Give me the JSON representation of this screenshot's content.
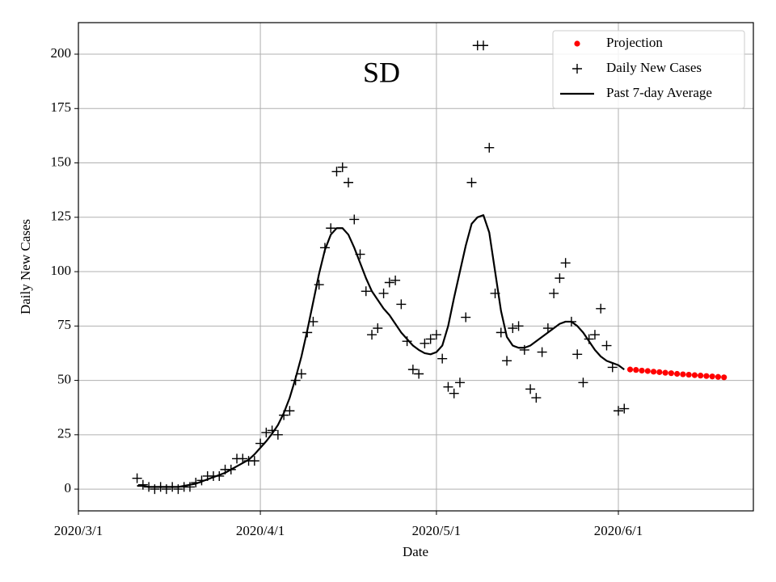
{
  "chart_data": {
    "type": "scatter",
    "annotation": "SD",
    "x_label": "Date",
    "y_label": "Daily New Cases",
    "xlim": [
      "2020/3/1",
      "2020/6/24"
    ],
    "xticks": [
      "2020/3/1",
      "2020/4/1",
      "2020/5/1",
      "2020/6/1"
    ],
    "ylim": [
      -10,
      214.5
    ],
    "yticks": [
      0,
      25,
      50,
      75,
      100,
      125,
      150,
      175,
      200
    ],
    "grid": true,
    "legend": "upper right",
    "series": [
      {
        "name": "Projection",
        "type": "scatter",
        "marker": "dot",
        "color": "#ff0000",
        "x": [
          "2020/6/3",
          "2020/6/4",
          "2020/6/5",
          "2020/6/6",
          "2020/6/7",
          "2020/6/8",
          "2020/6/9",
          "2020/6/10",
          "2020/6/11",
          "2020/6/12",
          "2020/6/13",
          "2020/6/14",
          "2020/6/15",
          "2020/6/16",
          "2020/6/17",
          "2020/6/18",
          "2020/6/19"
        ],
        "values": [
          55,
          54.8,
          54.5,
          54.3,
          54,
          53.8,
          53.5,
          53.3,
          53,
          52.8,
          52.6,
          52.4,
          52.2,
          52,
          51.8,
          51.6,
          51.4
        ]
      },
      {
        "name": "Daily New Cases",
        "type": "scatter",
        "marker": "plus",
        "color": "#000000",
        "x": [
          "2020/3/11",
          "2020/3/12",
          "2020/3/13",
          "2020/3/14",
          "2020/3/15",
          "2020/3/16",
          "2020/3/17",
          "2020/3/18",
          "2020/3/19",
          "2020/3/20",
          "2020/3/21",
          "2020/3/22",
          "2020/3/23",
          "2020/3/24",
          "2020/3/25",
          "2020/3/26",
          "2020/3/27",
          "2020/3/28",
          "2020/3/29",
          "2020/3/30",
          "2020/3/31",
          "2020/4/1",
          "2020/4/2",
          "2020/4/3",
          "2020/4/4",
          "2020/4/5",
          "2020/4/6",
          "2020/4/7",
          "2020/4/8",
          "2020/4/9",
          "2020/4/10",
          "2020/4/11",
          "2020/4/12",
          "2020/4/13",
          "2020/4/14",
          "2020/4/15",
          "2020/4/16",
          "2020/4/17",
          "2020/4/18",
          "2020/4/19",
          "2020/4/20",
          "2020/4/21",
          "2020/4/22",
          "2020/4/23",
          "2020/4/24",
          "2020/4/25",
          "2020/4/26",
          "2020/4/27",
          "2020/4/28",
          "2020/4/29",
          "2020/4/30",
          "2020/5/1",
          "2020/5/2",
          "2020/5/3",
          "2020/5/4",
          "2020/5/5",
          "2020/5/6",
          "2020/5/7",
          "2020/5/8",
          "2020/5/9",
          "2020/5/10",
          "2020/5/11",
          "2020/5/12",
          "2020/5/13",
          "2020/5/14",
          "2020/5/15",
          "2020/5/16",
          "2020/5/17",
          "2020/5/18",
          "2020/5/19",
          "2020/5/20",
          "2020/5/21",
          "2020/5/22",
          "2020/5/23",
          "2020/5/24",
          "2020/5/25",
          "2020/5/26",
          "2020/5/27",
          "2020/5/28",
          "2020/5/29",
          "2020/5/30",
          "2020/5/31",
          "2020/6/1",
          "2020/6/2"
        ],
        "values": [
          5,
          2,
          1,
          0,
          1,
          0,
          1,
          0,
          1,
          1,
          3,
          4,
          6,
          6,
          6,
          9,
          9,
          14,
          14,
          13,
          13,
          21,
          26,
          27,
          25,
          34,
          36,
          50,
          53,
          72,
          77,
          94,
          111,
          120,
          146,
          148,
          141,
          124,
          108,
          91,
          71,
          74,
          90,
          95,
          96,
          85,
          68,
          55,
          53,
          67,
          69,
          71,
          60,
          47,
          44,
          49,
          79,
          141,
          204,
          204,
          157,
          90,
          72,
          59,
          74,
          75,
          64,
          46,
          42,
          63,
          74,
          90,
          97,
          104,
          77,
          62,
          49,
          69,
          71,
          83,
          66,
          56,
          36,
          37
        ]
      },
      {
        "name": "Past 7-day Average",
        "type": "line",
        "color": "#000000",
        "x": [
          "2020/3/11",
          "2020/3/12",
          "2020/3/13",
          "2020/3/14",
          "2020/3/15",
          "2020/3/16",
          "2020/3/17",
          "2020/3/18",
          "2020/3/19",
          "2020/3/20",
          "2020/3/21",
          "2020/3/22",
          "2020/3/23",
          "2020/3/24",
          "2020/3/25",
          "2020/3/26",
          "2020/3/27",
          "2020/3/28",
          "2020/3/29",
          "2020/3/30",
          "2020/3/31",
          "2020/4/1",
          "2020/4/2",
          "2020/4/3",
          "2020/4/4",
          "2020/4/5",
          "2020/4/6",
          "2020/4/7",
          "2020/4/8",
          "2020/4/9",
          "2020/4/10",
          "2020/4/11",
          "2020/4/12",
          "2020/4/13",
          "2020/4/14",
          "2020/4/15",
          "2020/4/16",
          "2020/4/17",
          "2020/4/18",
          "2020/4/19",
          "2020/4/20",
          "2020/4/21",
          "2020/4/22",
          "2020/4/23",
          "2020/4/24",
          "2020/4/25",
          "2020/4/26",
          "2020/4/27",
          "2020/4/28",
          "2020/4/29",
          "2020/4/30",
          "2020/5/1",
          "2020/5/2",
          "2020/5/3",
          "2020/5/4",
          "2020/5/5",
          "2020/5/6",
          "2020/5/7",
          "2020/5/8",
          "2020/5/9",
          "2020/5/10",
          "2020/5/11",
          "2020/5/12",
          "2020/5/13",
          "2020/5/14",
          "2020/5/15",
          "2020/5/16",
          "2020/5/17",
          "2020/5/18",
          "2020/5/19",
          "2020/5/20",
          "2020/5/21",
          "2020/5/22",
          "2020/5/23",
          "2020/5/24",
          "2020/5/25",
          "2020/5/26",
          "2020/5/27",
          "2020/5/28",
          "2020/5/29",
          "2020/5/30",
          "2020/5/31",
          "2020/6/1",
          "2020/6/2"
        ],
        "values": [
          1.5,
          1.5,
          1,
          1,
          1,
          1,
          1,
          1,
          1.5,
          2,
          2.5,
          3.5,
          4.5,
          5.5,
          6.5,
          7.5,
          9,
          10.5,
          12,
          13.5,
          16,
          19,
          22,
          25.5,
          29.5,
          35,
          42,
          51,
          61,
          73,
          86,
          99,
          110,
          117,
          120,
          120,
          117,
          111,
          104,
          97,
          91,
          87,
          83,
          80,
          76,
          72,
          69,
          66,
          64,
          62.5,
          62,
          63,
          66,
          75,
          88,
          100,
          112,
          122,
          125,
          126,
          118,
          100,
          82,
          70,
          66,
          65,
          65,
          66,
          68,
          70,
          72,
          74,
          76,
          77,
          77,
          75,
          72,
          68,
          64,
          61,
          59,
          58,
          57,
          55
        ]
      }
    ]
  }
}
